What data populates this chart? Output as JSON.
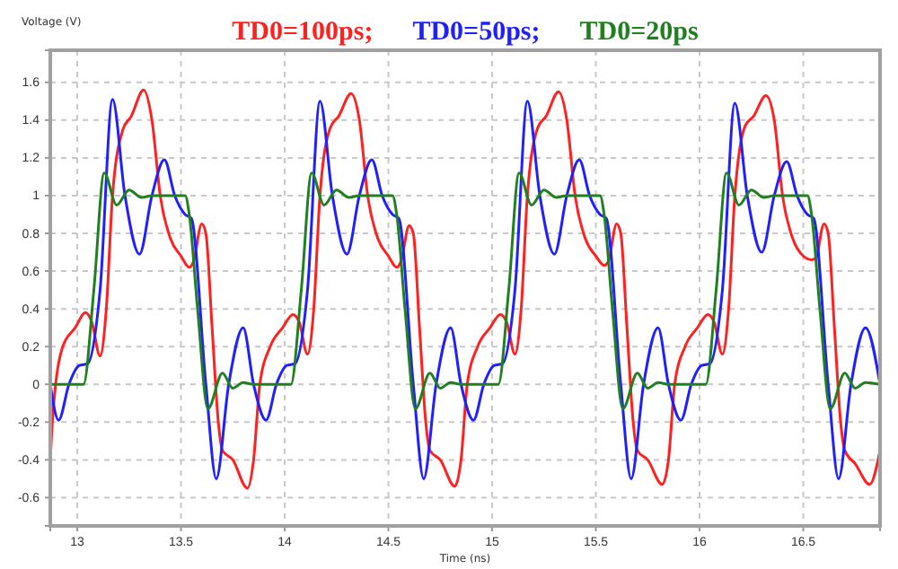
{
  "chart_data": {
    "type": "line",
    "xlabel": "Time (ns)",
    "ylabel": "Voltage (V)",
    "xlim": [
      12.87,
      16.87
    ],
    "xticks": [
      13,
      13.5,
      14,
      14.5,
      15,
      15.5,
      16,
      16.5
    ],
    "ylim": [
      -0.75,
      1.77
    ],
    "yticks": [
      -0.6,
      -0.4,
      -0.2,
      0,
      0.2,
      0.4,
      0.6,
      0.8,
      1,
      1.2,
      1.4,
      1.6
    ],
    "grid": true,
    "legend": "top",
    "marker": "none",
    "line_style": "solid",
    "series": [
      {
        "name": "TD0=100ps;",
        "color": "#ff2020",
        "x": [
          12.87,
          12.88,
          12.93,
          12.99,
          13.04,
          13.07,
          13.11,
          13.14,
          13.17,
          13.22,
          13.26,
          13.32,
          13.36,
          13.4,
          13.45,
          13.5,
          13.54,
          13.56,
          13.6,
          13.62,
          13.65,
          13.68,
          13.7,
          13.75,
          13.82,
          13.85,
          13.88,
          13.93,
          13.99,
          14.04,
          14.07,
          14.11,
          14.14,
          14.17,
          14.22,
          14.26,
          14.32,
          14.36,
          14.4,
          14.45,
          14.5,
          14.54,
          14.56,
          14.6,
          14.62,
          14.65,
          14.68,
          14.7,
          14.75,
          14.82,
          14.85,
          14.88,
          14.93,
          14.99,
          15.04,
          15.07,
          15.11,
          15.14,
          15.17,
          15.22,
          15.26,
          15.32,
          15.36,
          15.4,
          15.45,
          15.5,
          15.54,
          15.56,
          15.6,
          15.62,
          15.65,
          15.68,
          15.7,
          15.75,
          15.82,
          15.85,
          15.88,
          15.93,
          15.99,
          16.04,
          16.07,
          16.11,
          16.14,
          16.17,
          16.22,
          16.26,
          16.32,
          16.36,
          16.4,
          16.45,
          16.5,
          16.54,
          16.56,
          16.6,
          16.62,
          16.65,
          16.68,
          16.7,
          16.75,
          16.82,
          16.87
        ],
        "values": [
          -0.4,
          -0.2,
          0.2,
          0.3,
          0.38,
          0.33,
          0.15,
          0.4,
          1.0,
          1.35,
          1.42,
          1.56,
          1.4,
          1.0,
          0.77,
          0.68,
          0.62,
          0.65,
          0.85,
          0.8,
          0.3,
          -0.2,
          -0.35,
          -0.4,
          -0.55,
          -0.4,
          0,
          0.2,
          0.3,
          0.37,
          0.33,
          0.16,
          0.4,
          1.0,
          1.36,
          1.42,
          1.54,
          1.4,
          1.0,
          0.77,
          0.68,
          0.62,
          0.65,
          0.84,
          0.8,
          0.3,
          -0.2,
          -0.35,
          -0.4,
          -0.54,
          -0.4,
          0,
          0.2,
          0.3,
          0.37,
          0.33,
          0.16,
          0.4,
          1.0,
          1.36,
          1.42,
          1.55,
          1.4,
          1.0,
          0.77,
          0.68,
          0.63,
          0.65,
          0.85,
          0.8,
          0.3,
          -0.2,
          -0.35,
          -0.4,
          -0.53,
          -0.4,
          0,
          0.2,
          0.3,
          0.37,
          0.33,
          0.16,
          0.4,
          1.0,
          1.37,
          1.42,
          1.53,
          1.4,
          1.0,
          0.77,
          0.68,
          0.66,
          0.67,
          0.85,
          0.8,
          0.3,
          -0.2,
          -0.35,
          -0.42,
          -0.53,
          -0.35
        ]
      },
      {
        "name": "TD0=50ps;",
        "color": "#2020ff",
        "x": [
          12.87,
          12.91,
          12.96,
          13.01,
          13.05,
          13.11,
          13.17,
          13.23,
          13.3,
          13.36,
          13.42,
          13.47,
          13.52,
          13.55,
          13.62,
          13.67,
          13.73,
          13.8,
          13.85,
          13.91,
          13.96,
          14.01,
          14.05,
          14.11,
          14.17,
          14.23,
          14.3,
          14.36,
          14.42,
          14.47,
          14.52,
          14.55,
          14.62,
          14.67,
          14.73,
          14.8,
          14.85,
          14.91,
          14.96,
          15.01,
          15.05,
          15.11,
          15.17,
          15.23,
          15.3,
          15.36,
          15.42,
          15.47,
          15.52,
          15.55,
          15.62,
          15.67,
          15.73,
          15.8,
          15.85,
          15.91,
          15.96,
          16.01,
          16.05,
          16.11,
          16.17,
          16.23,
          16.3,
          16.36,
          16.42,
          16.47,
          16.52,
          16.55,
          16.62,
          16.67,
          16.73,
          16.8,
          16.87
        ],
        "values": [
          0,
          -0.19,
          0,
          0.1,
          0.11,
          0.5,
          1.51,
          1.0,
          0.69,
          1.0,
          1.19,
          1.0,
          0.9,
          0.88,
          0,
          -0.5,
          0,
          0.3,
          0,
          -0.19,
          0,
          0.1,
          0.11,
          0.5,
          1.5,
          1.0,
          0.69,
          1.0,
          1.19,
          1.0,
          0.9,
          0.88,
          0,
          -0.5,
          0,
          0.3,
          0,
          -0.19,
          0,
          0.1,
          0.11,
          0.5,
          1.5,
          1.0,
          0.69,
          1.0,
          1.19,
          1.0,
          0.9,
          0.88,
          0,
          -0.5,
          0,
          0.3,
          0,
          -0.19,
          0,
          0.1,
          0.11,
          0.5,
          1.49,
          1.0,
          0.7,
          1.0,
          1.18,
          1.0,
          0.9,
          0.88,
          0,
          -0.5,
          0,
          0.3,
          0
        ]
      },
      {
        "name": "TD0=20ps",
        "color": "#208020",
        "x": [
          12.87,
          13.03,
          13.08,
          13.13,
          13.19,
          13.25,
          13.31,
          13.36,
          13.52,
          13.54,
          13.58,
          13.63,
          13.7,
          13.75,
          13.8,
          13.85,
          14.03,
          14.08,
          14.13,
          14.19,
          14.25,
          14.31,
          14.36,
          14.52,
          14.54,
          14.58,
          14.63,
          14.7,
          14.75,
          14.8,
          14.85,
          15.03,
          15.08,
          15.13,
          15.19,
          15.25,
          15.31,
          15.36,
          15.52,
          15.54,
          15.58,
          15.63,
          15.7,
          15.75,
          15.8,
          15.85,
          16.03,
          16.08,
          16.13,
          16.19,
          16.25,
          16.31,
          16.36,
          16.52,
          16.54,
          16.58,
          16.63,
          16.7,
          16.75,
          16.8,
          16.87
        ],
        "values": [
          0,
          0,
          0.5,
          1.12,
          0.95,
          1.03,
          0.99,
          1.0,
          1.0,
          0.9,
          0.4,
          -0.13,
          0.06,
          -0.02,
          0.01,
          0,
          0,
          0.5,
          1.12,
          0.95,
          1.03,
          0.99,
          1.0,
          1.0,
          0.9,
          0.4,
          -0.13,
          0.06,
          -0.02,
          0.01,
          0,
          0,
          0.5,
          1.12,
          0.95,
          1.03,
          0.99,
          1.0,
          1.0,
          0.9,
          0.4,
          -0.13,
          0.06,
          -0.02,
          0.01,
          0,
          0,
          0.5,
          1.12,
          0.95,
          1.03,
          0.99,
          1.0,
          1.0,
          0.9,
          0.4,
          -0.13,
          0.06,
          -0.02,
          0.01,
          0
        ]
      }
    ]
  }
}
